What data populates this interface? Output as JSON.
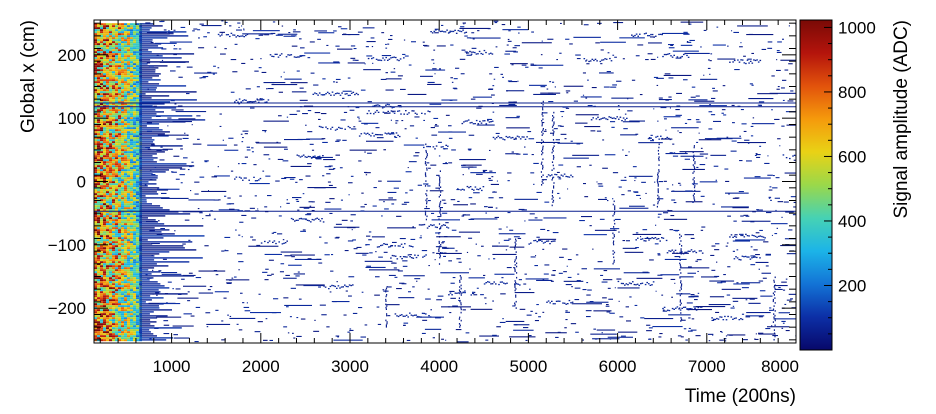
{
  "chart_data": {
    "type": "heatmap",
    "title": "",
    "xlabel": "Time (200ns)",
    "ylabel": "Global x (cm)",
    "colorbar_label": "Signal amplitude (ADC)",
    "xlim": [
      130,
      8000
    ],
    "ylim": [
      -255,
      255
    ],
    "zlim": [
      0,
      1023
    ],
    "x_ticks": [
      1000,
      2000,
      3000,
      4000,
      5000,
      6000,
      7000,
      8000
    ],
    "y_ticks": [
      -200,
      -100,
      0,
      100,
      200
    ],
    "z_ticks": [
      200,
      400,
      600,
      800,
      1000
    ],
    "colormap": "rainbow (dark blue → cyan → green → yellow → orange → dark red)",
    "colormap_stops": [
      "#08086a",
      "#0c2fa6",
      "#1373d6",
      "#1cb4e8",
      "#46d2b4",
      "#9ad84a",
      "#e9d215",
      "#f59a0c",
      "#e2530c",
      "#b4140c",
      "#7a0a06"
    ],
    "saturated_region": {
      "x_range": [
        130,
        640
      ],
      "y_range": [
        -250,
        250
      ],
      "amplitude_range": [
        300,
        1023
      ]
    },
    "horizontal_lines": [
      {
        "y": 124,
        "x_range": [
          130,
          8000
        ],
        "amplitude": 60
      },
      {
        "y": 118,
        "x_range": [
          130,
          8000
        ],
        "amplitude": 60
      },
      {
        "y": -47,
        "x_range": [
          130,
          8000
        ],
        "amplitude": 60
      }
    ],
    "hit_segments": [
      {
        "x": [
          1700,
          2100
        ],
        "y": 129,
        "amplitude": 60
      },
      {
        "x": [
          2580,
          3100
        ],
        "y": 140,
        "amplitude": 60
      },
      {
        "x": [
          3250,
          3500
        ],
        "y": 120,
        "amplitude": 60
      },
      {
        "x": [
          3150,
          3900
        ],
        "y": 110,
        "amplitude": 60
      },
      {
        "x": [
          4250,
          4600
        ],
        "y": 95,
        "amplitude": 60
      },
      {
        "x": [
          5700,
          6100
        ],
        "y": 100,
        "amplitude": 60
      },
      {
        "x": [
          6350,
          6600
        ],
        "y": 70,
        "amplitude": 60
      },
      {
        "x": [
          7850,
          8000
        ],
        "y": 40,
        "amplitude": 60
      },
      {
        "x": [
          3100,
          3550
        ],
        "y": 75,
        "amplitude": 60
      },
      {
        "x": [
          3800,
          4100
        ],
        "y": 55,
        "amplitude": 60
      },
      {
        "x": [
          2400,
          2700
        ],
        "y": 40,
        "amplitude": 60
      },
      {
        "x": [
          1700,
          2000
        ],
        "y": 5,
        "amplitude": 60
      },
      {
        "x": [
          5200,
          5500
        ],
        "y": 10,
        "amplitude": 60
      },
      {
        "x": [
          4200,
          4500
        ],
        "y": -10,
        "amplitude": 60
      },
      {
        "x": [
          2300,
          2700
        ],
        "y": -60,
        "amplitude": 60
      },
      {
        "x": [
          3700,
          4100
        ],
        "y": -70,
        "amplitude": 60
      },
      {
        "x": [
          2000,
          2300
        ],
        "y": -95,
        "amplitude": 60
      },
      {
        "x": [
          3300,
          3700
        ],
        "y": -100,
        "amplitude": 60
      },
      {
        "x": [
          5000,
          5300
        ],
        "y": -95,
        "amplitude": 60
      },
      {
        "x": [
          6200,
          6550
        ],
        "y": -90,
        "amplitude": 60
      },
      {
        "x": [
          6550,
          6950
        ],
        "y": -110,
        "amplitude": 60
      },
      {
        "x": [
          7250,
          7650
        ],
        "y": -85,
        "amplitude": 60
      },
      {
        "x": [
          7300,
          7600
        ],
        "y": -120,
        "amplitude": 60
      },
      {
        "x": [
          3450,
          3850
        ],
        "y": -118,
        "amplitude": 60
      },
      {
        "x": [
          2700,
          3050
        ],
        "y": -165,
        "amplitude": 60
      },
      {
        "x": [
          4100,
          4400
        ],
        "y": -175,
        "amplitude": 60
      },
      {
        "x": [
          4500,
          4900
        ],
        "y": -160,
        "amplitude": 60
      },
      {
        "x": [
          6000,
          6400
        ],
        "y": -160,
        "amplitude": 60
      },
      {
        "x": [
          5200,
          5500
        ],
        "y": -190,
        "amplitude": 60
      },
      {
        "x": [
          6500,
          6900
        ],
        "y": -200,
        "amplitude": 60
      },
      {
        "x": [
          3500,
          3900
        ],
        "y": -210,
        "amplitude": 60
      },
      {
        "x": [
          7050,
          7400
        ],
        "y": -215,
        "amplitude": 60
      },
      {
        "x": [
          2650,
          3000
        ],
        "y": 85,
        "amplitude": 60
      },
      {
        "x": [
          4600,
          5000
        ],
        "y": 70,
        "amplitude": 60
      },
      {
        "x": [
          3200,
          3600
        ],
        "y": 195,
        "amplitude": 60
      },
      {
        "x": [
          4300,
          4600
        ],
        "y": 205,
        "amplitude": 60
      },
      {
        "x": [
          2100,
          2500
        ],
        "y": 200,
        "amplitude": 60
      },
      {
        "x": [
          5600,
          5950
        ],
        "y": 192,
        "amplitude": 60
      },
      {
        "x": [
          6500,
          6800
        ],
        "y": 200,
        "amplitude": 60
      },
      {
        "x": [
          7250,
          7600
        ],
        "y": 190,
        "amplitude": 60
      },
      {
        "x": [
          1500,
          1850
        ],
        "y": 232,
        "amplitude": 60
      },
      {
        "x": [
          3900,
          4300
        ],
        "y": 238,
        "amplitude": 60
      },
      {
        "x": [
          6150,
          6500
        ],
        "y": 232,
        "amplitude": 60
      }
    ],
    "vertical_segments": [
      {
        "x": 5150,
        "y": [
          -5,
          130
        ],
        "amplitude": 60
      },
      {
        "x": 5270,
        "y": [
          -40,
          110
        ],
        "amplitude": 60
      },
      {
        "x": 4000,
        "y": [
          -130,
          20
        ],
        "amplitude": 60
      },
      {
        "x": 3850,
        "y": [
          -60,
          60
        ],
        "amplitude": 60
      },
      {
        "x": 6700,
        "y": [
          -220,
          -80
        ],
        "amplitude": 60
      },
      {
        "x": 5950,
        "y": [
          -130,
          -30
        ],
        "amplitude": 60
      },
      {
        "x": 6450,
        "y": [
          -40,
          60
        ],
        "amplitude": 60
      },
      {
        "x": 4850,
        "y": [
          -200,
          -90
        ],
        "amplitude": 60
      },
      {
        "x": 4230,
        "y": [
          -230,
          -140
        ],
        "amplitude": 60
      },
      {
        "x": 6850,
        "y": [
          -30,
          60
        ],
        "amplitude": 60
      },
      {
        "x": 7750,
        "y": [
          -250,
          -150
        ],
        "amplitude": 60
      },
      {
        "x": 3400,
        "y": [
          -230,
          -160
        ],
        "amplitude": 60
      }
    ]
  }
}
